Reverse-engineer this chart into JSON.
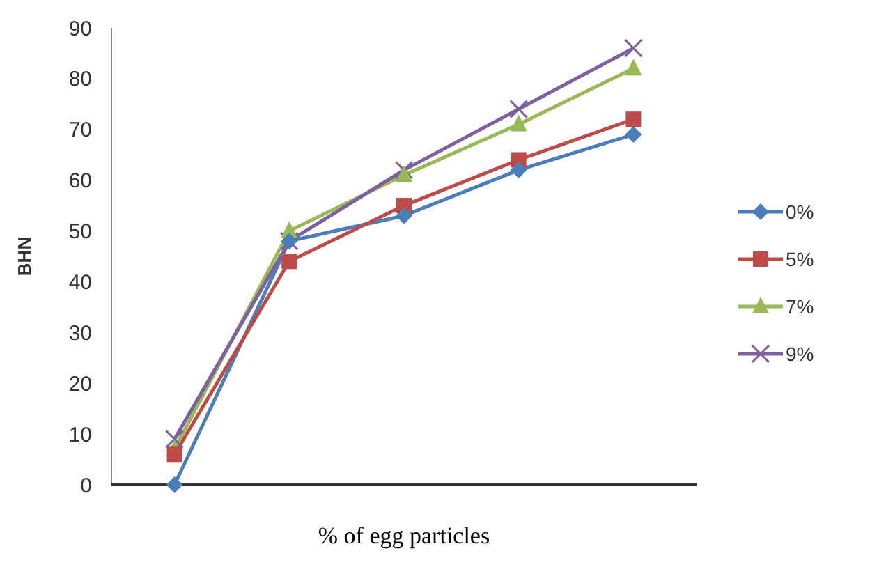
{
  "chart_data": {
    "type": "line",
    "xlabel": "% of egg particles",
    "ylabel": "BHN",
    "categories": [
      null,
      null,
      null,
      null,
      null
    ],
    "ylim": [
      0,
      90
    ],
    "yticks": [
      0,
      10,
      20,
      30,
      40,
      50,
      60,
      70,
      80,
      90
    ],
    "legend": "right",
    "grid": false,
    "series": [
      {
        "name": "0%",
        "color": "#4a7ebb",
        "marker": "diamond",
        "values": [
          0,
          48,
          53,
          62,
          69
        ]
      },
      {
        "name": "5%",
        "color": "#be4b48",
        "marker": "square",
        "values": [
          6,
          44,
          55,
          64,
          72
        ]
      },
      {
        "name": "7%",
        "color": "#98b954",
        "marker": "triangle",
        "values": [
          7,
          50,
          61,
          71,
          82
        ]
      },
      {
        "name": "9%",
        "color": "#7d60a0",
        "marker": "cross",
        "values": [
          9,
          48,
          62,
          74,
          86
        ]
      }
    ]
  }
}
